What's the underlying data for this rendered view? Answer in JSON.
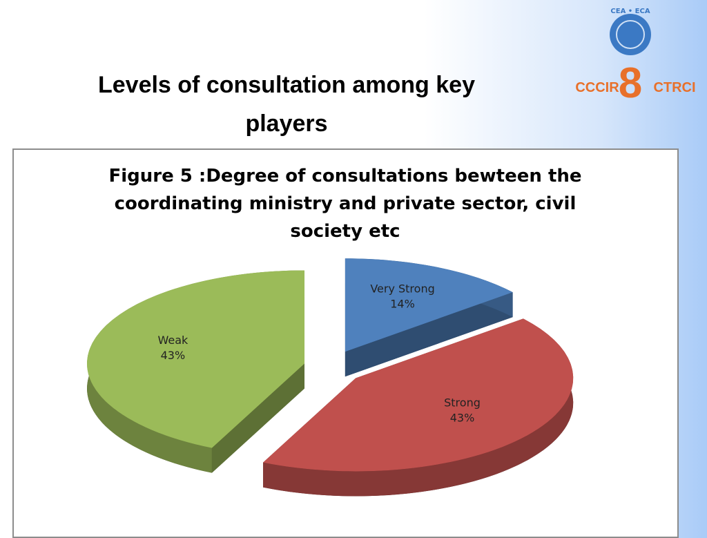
{
  "slide_title": "Levels of consultation among key players",
  "logo": {
    "top": "CEA • ECA",
    "left": "CCCIR",
    "number": 8,
    "right": "CTRCI"
  },
  "chart_data": {
    "type": "pie",
    "title": "Figure 5 :Degree of consultations bewteen the coordinating ministry and private sector, civil society etc",
    "categories": [
      "Very Strong",
      "Strong",
      "Weak"
    ],
    "values": [
      14,
      43,
      43
    ],
    "value_labels": [
      "14%",
      "43%",
      "43%"
    ],
    "colors": [
      "#4f81bd",
      "#c0504d",
      "#9bbb59"
    ]
  }
}
